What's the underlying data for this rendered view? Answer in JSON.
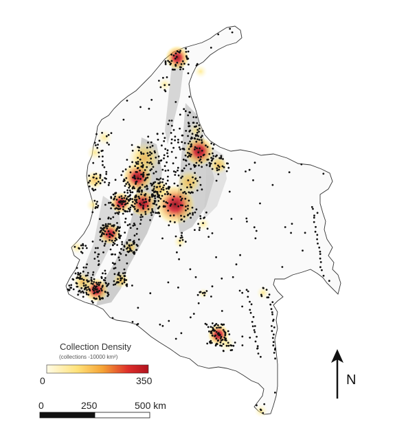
{
  "legend": {
    "title": "Collection Density",
    "subtitle": "(collections -10000 km²)",
    "min_label": "0",
    "max_label": "350",
    "gradient_colors": [
      "#fffbe6",
      "#ffd84a",
      "#f08a24",
      "#d8212a",
      "#8f0f1b"
    ]
  },
  "scale_bar": {
    "label_0": "0",
    "label_250": "250",
    "label_500": "500 km"
  },
  "north_arrow": {
    "label": "N"
  },
  "colors": {
    "outline": "#333333",
    "relief": "#9a9a9a",
    "points": "#111111",
    "hot": "#8f0f1b",
    "warm": "#f08a24",
    "glow": "#ffd84a"
  }
}
